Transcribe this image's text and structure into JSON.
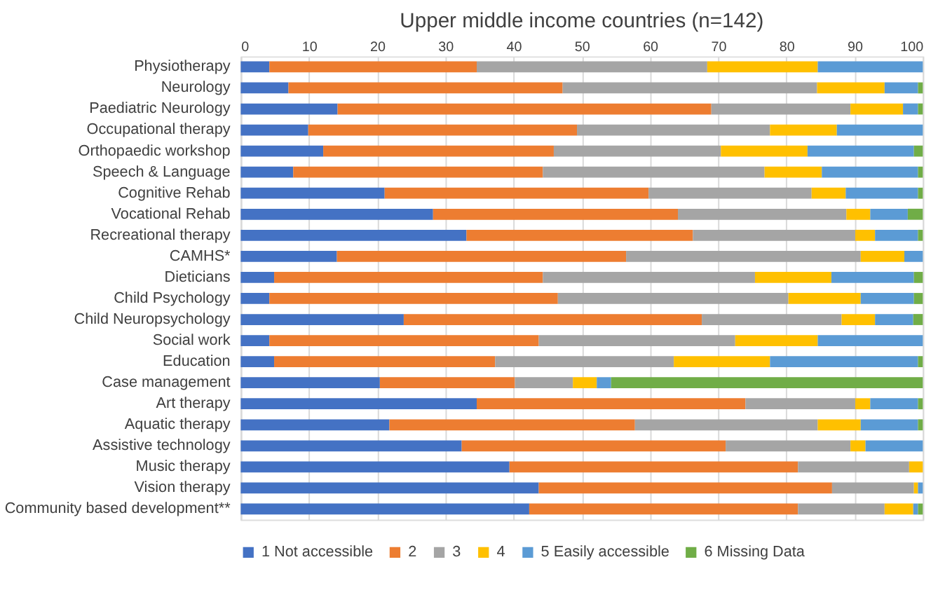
{
  "chart_data": {
    "type": "bar",
    "orientation": "horizontal",
    "stacked": true,
    "title": "Upper middle income countries (n=142)",
    "categories": [
      "Physiotherapy",
      "Neurology",
      "Paediatric Neurology",
      "Occupational therapy",
      "Orthopaedic workshop",
      "Speech & Language",
      "Cognitive Rehab",
      "Vocational Rehab",
      "Recreational therapy",
      "CAMHS*",
      "Dieticians",
      "Child Psychology",
      "Child Neuropsychology",
      "Social work",
      "Education",
      "Case management",
      "Art therapy",
      "Aquatic therapy",
      "Assistive technology",
      "Music therapy",
      "Vision therapy",
      "Community based development**"
    ],
    "series": [
      {
        "name": "1 Not accessible",
        "color": "#4472c4",
        "values": [
          4.2,
          7.0,
          14.2,
          9.9,
          12.1,
          7.7,
          21.1,
          28.2,
          33.1,
          14.1,
          4.9,
          4.2,
          23.9,
          4.2,
          4.9,
          20.4,
          34.6,
          21.8,
          32.4,
          39.4,
          43.7,
          42.3
        ]
      },
      {
        "name": "2",
        "color": "#ed7d31",
        "values": [
          30.4,
          40.2,
          54.8,
          39.4,
          33.8,
          36.6,
          38.7,
          35.9,
          33.2,
          42.4,
          39.4,
          42.3,
          43.7,
          39.5,
          32.4,
          19.8,
          39.4,
          36.0,
          38.7,
          42.3,
          43.0,
          39.4
        ]
      },
      {
        "name": "3",
        "color": "#a5a5a5",
        "values": [
          33.8,
          37.3,
          20.4,
          28.3,
          24.5,
          32.5,
          23.9,
          24.7,
          23.8,
          34.4,
          31.1,
          33.8,
          20.5,
          28.8,
          26.2,
          8.5,
          16.1,
          26.8,
          18.3,
          16.3,
          12.0,
          12.7
        ]
      },
      {
        "name": "4",
        "color": "#ffc000",
        "values": [
          16.2,
          9.9,
          7.7,
          9.8,
          12.7,
          8.4,
          5.0,
          3.5,
          2.9,
          6.4,
          11.2,
          10.6,
          4.9,
          12.1,
          14.1,
          3.5,
          2.2,
          6.3,
          2.2,
          2.0,
          0.6,
          4.2
        ]
      },
      {
        "name": "5 Easily accessible",
        "color": "#5b9bd5",
        "values": [
          15.4,
          4.9,
          2.2,
          12.6,
          15.6,
          14.1,
          10.6,
          5.5,
          6.3,
          2.7,
          12.1,
          7.8,
          5.6,
          15.4,
          21.7,
          2.1,
          7.0,
          8.4,
          8.4,
          0,
          0.7,
          0.7
        ]
      },
      {
        "name": "6 Missing Data",
        "color": "#70ad47",
        "values": [
          0,
          0.7,
          0.7,
          0,
          1.3,
          0.7,
          0.7,
          2.2,
          0.7,
          0,
          1.3,
          1.3,
          1.4,
          0,
          0.7,
          45.7,
          0.7,
          0.7,
          0,
          0,
          0,
          0.7
        ]
      }
    ],
    "xlim": [
      0,
      100
    ],
    "xticks": [
      0,
      10,
      20,
      30,
      40,
      50,
      60,
      70,
      80,
      90,
      100
    ],
    "grid": "x",
    "legend": "bottom"
  }
}
